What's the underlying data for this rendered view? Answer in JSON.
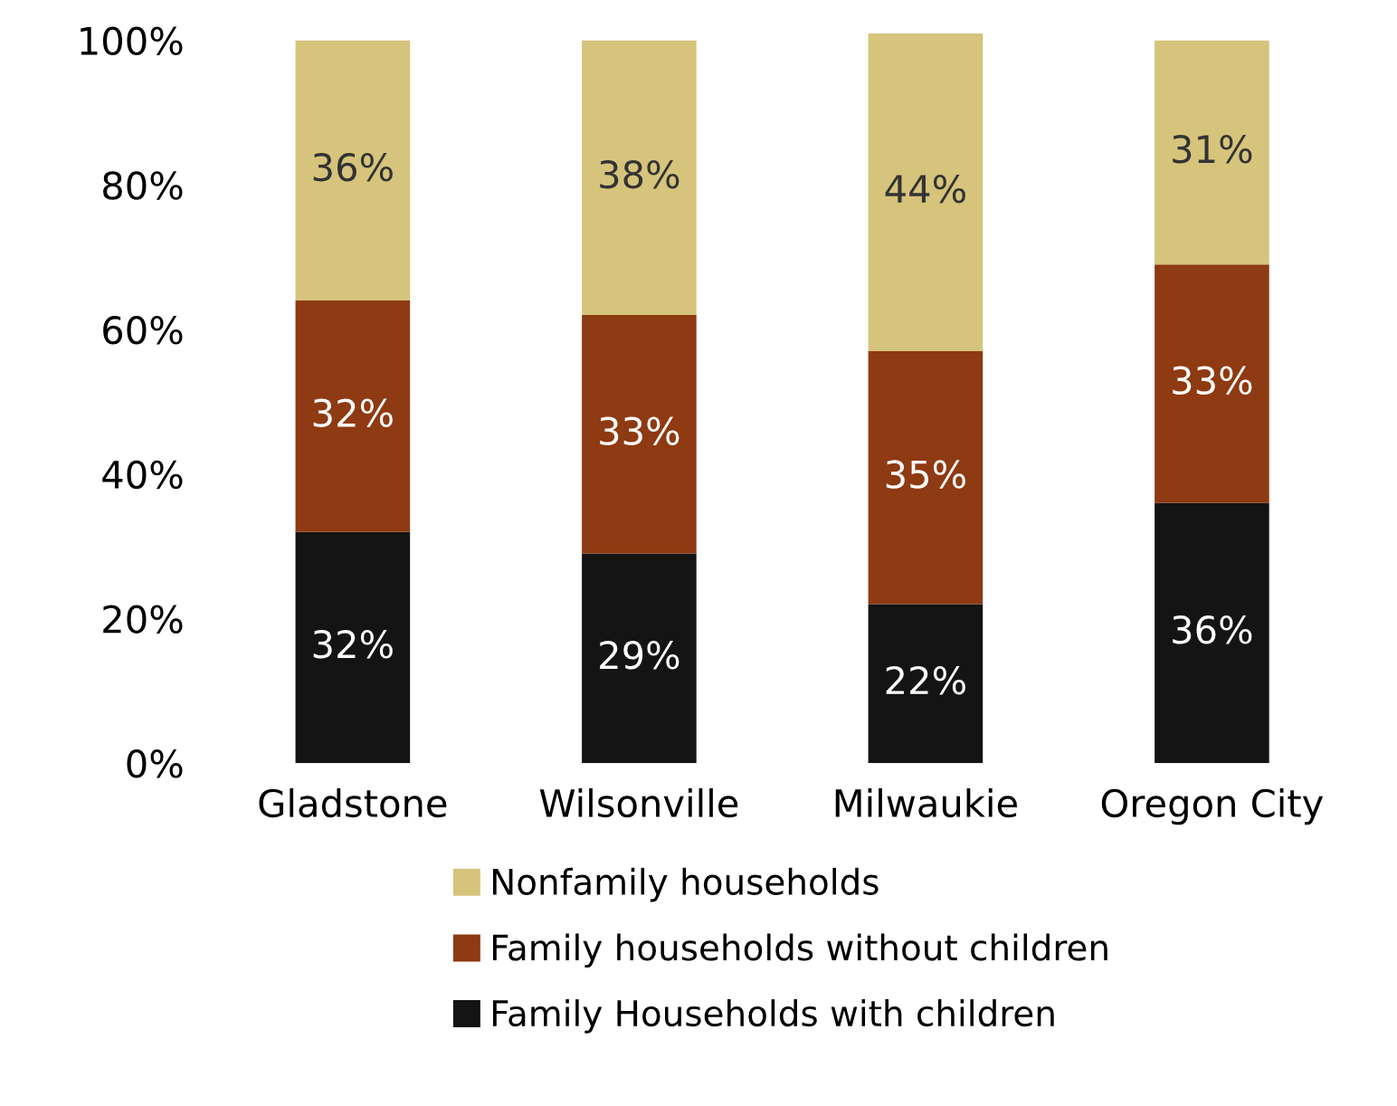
{
  "chart_data": {
    "type": "bar",
    "stacked": true,
    "categories": [
      "Gladstone",
      "Wilsonville",
      "Milwaukie",
      "Oregon City"
    ],
    "series": [
      {
        "name": "Family Households with children",
        "color": "#141414",
        "values": [
          32,
          29,
          22,
          36
        ],
        "value_labels": [
          "32%",
          "29%",
          "22%",
          "36%"
        ]
      },
      {
        "name": "Family households without children",
        "color": "#8e3a12",
        "values": [
          32,
          33,
          35,
          33
        ],
        "value_labels": [
          "32%",
          "33%",
          "35%",
          "33%"
        ]
      },
      {
        "name": "Nonfamily households",
        "color": "#d6c47c",
        "values": [
          36,
          38,
          44,
          31
        ],
        "value_labels": [
          "36%",
          "38%",
          "44%",
          "31%"
        ]
      }
    ],
    "ylim": [
      0,
      101
    ],
    "yticks": [
      {
        "value": 0,
        "label": "0%"
      },
      {
        "value": 20,
        "label": "20%"
      },
      {
        "value": 40,
        "label": "40%"
      },
      {
        "value": 60,
        "label": "60%"
      },
      {
        "value": 80,
        "label": "80%"
      },
      {
        "value": 100,
        "label": "100%"
      }
    ],
    "grid": false,
    "legend": "bottom"
  }
}
